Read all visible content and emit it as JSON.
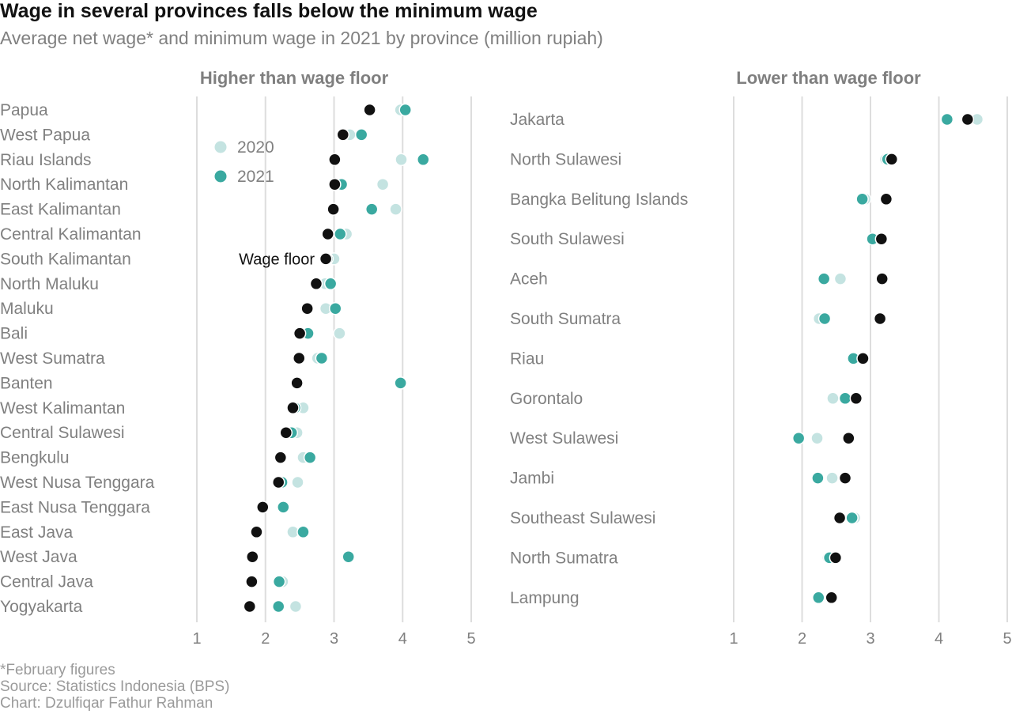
{
  "title": "Wage in several provinces falls below the minimum wage",
  "subtitle": "Average net wage* and minimum wage in 2021 by province (million rupiah)",
  "footnotes": [
    "*February figures",
    "Source: Statistics Indonesia (BPS)",
    "Chart: Dzulfiqar Fathur Rahman"
  ],
  "colors": {
    "y2020": "#c4e3e1",
    "y2021": "#3aa9a0",
    "wage_floor": "#111111",
    "grid": "#dddddd",
    "label": "#808080",
    "panel_title": "#7f7f7f"
  },
  "chart_data": [
    {
      "type": "scatter",
      "title": "Higher than wage floor",
      "xlim": [
        1,
        5
      ],
      "x_ticks": [
        1,
        2,
        3,
        4,
        5
      ],
      "grid": true,
      "legend": [
        "2020",
        "2021"
      ],
      "annotation": "Wage floor",
      "annotation_row": "South Kalimantan",
      "categories": [
        "Papua",
        "West Papua",
        "Riau Islands",
        "North Kalimantan",
        "East Kalimantan",
        "Central Kalimantan",
        "South Kalimantan",
        "North Maluku",
        "Maluku",
        "Bali",
        "West Sumatra",
        "Banten",
        "West Kalimantan",
        "Central Sulawesi",
        "Bengkulu",
        "West Nusa Tenggara",
        "East Nusa Tenggara",
        "East Java",
        "West Java",
        "Central Java",
        "Yogyakarta"
      ],
      "series": [
        {
          "name": "2020",
          "values": [
            3.97,
            3.23,
            3.98,
            3.71,
            3.9,
            3.18,
            3.0,
            2.87,
            2.88,
            3.08,
            2.76,
            3.98,
            2.55,
            2.46,
            2.55,
            2.47,
            2.27,
            2.4,
            3.22,
            2.25,
            2.44
          ]
        },
        {
          "name": "2021",
          "values": [
            4.04,
            3.4,
            4.3,
            3.11,
            3.55,
            3.09,
            2.9,
            2.95,
            3.02,
            2.62,
            2.82,
            3.97,
            2.43,
            2.38,
            2.65,
            2.24,
            2.26,
            2.55,
            3.21,
            2.2,
            2.19
          ]
        },
        {
          "name": "Wage floor",
          "values": [
            3.52,
            3.13,
            3.01,
            3.01,
            2.99,
            2.91,
            2.88,
            2.74,
            2.61,
            2.5,
            2.49,
            2.46,
            2.4,
            2.3,
            2.22,
            2.19,
            1.96,
            1.87,
            1.81,
            1.8,
            1.77
          ]
        }
      ]
    },
    {
      "type": "scatter",
      "title": "Lower than wage floor",
      "xlim": [
        1,
        5
      ],
      "x_ticks": [
        1,
        2,
        3,
        4,
        5
      ],
      "grid": true,
      "categories": [
        "Jakarta",
        "North Sulawesi",
        "Bangka Belitung Islands",
        "South Sulawesi",
        "Aceh",
        "South Sumatra",
        "Riau",
        "Gorontalo",
        "West Sulawesi",
        "Jambi",
        "Southeast Sulawesi",
        "North Sumatra",
        "Lampung"
      ],
      "series": [
        {
          "name": "2020",
          "values": [
            4.56,
            3.22,
            2.92,
            3.06,
            2.56,
            2.25,
            2.75,
            2.45,
            2.22,
            2.44,
            2.77,
            2.38,
            2.25
          ]
        },
        {
          "name": "2021",
          "values": [
            4.12,
            3.25,
            2.88,
            3.03,
            2.32,
            2.33,
            2.75,
            2.63,
            1.95,
            2.23,
            2.73,
            2.4,
            2.24
          ]
        },
        {
          "name": "Wage floor",
          "values": [
            4.42,
            3.31,
            3.23,
            3.16,
            3.17,
            3.14,
            2.89,
            2.79,
            2.68,
            2.63,
            2.55,
            2.49,
            2.43
          ]
        }
      ]
    }
  ]
}
